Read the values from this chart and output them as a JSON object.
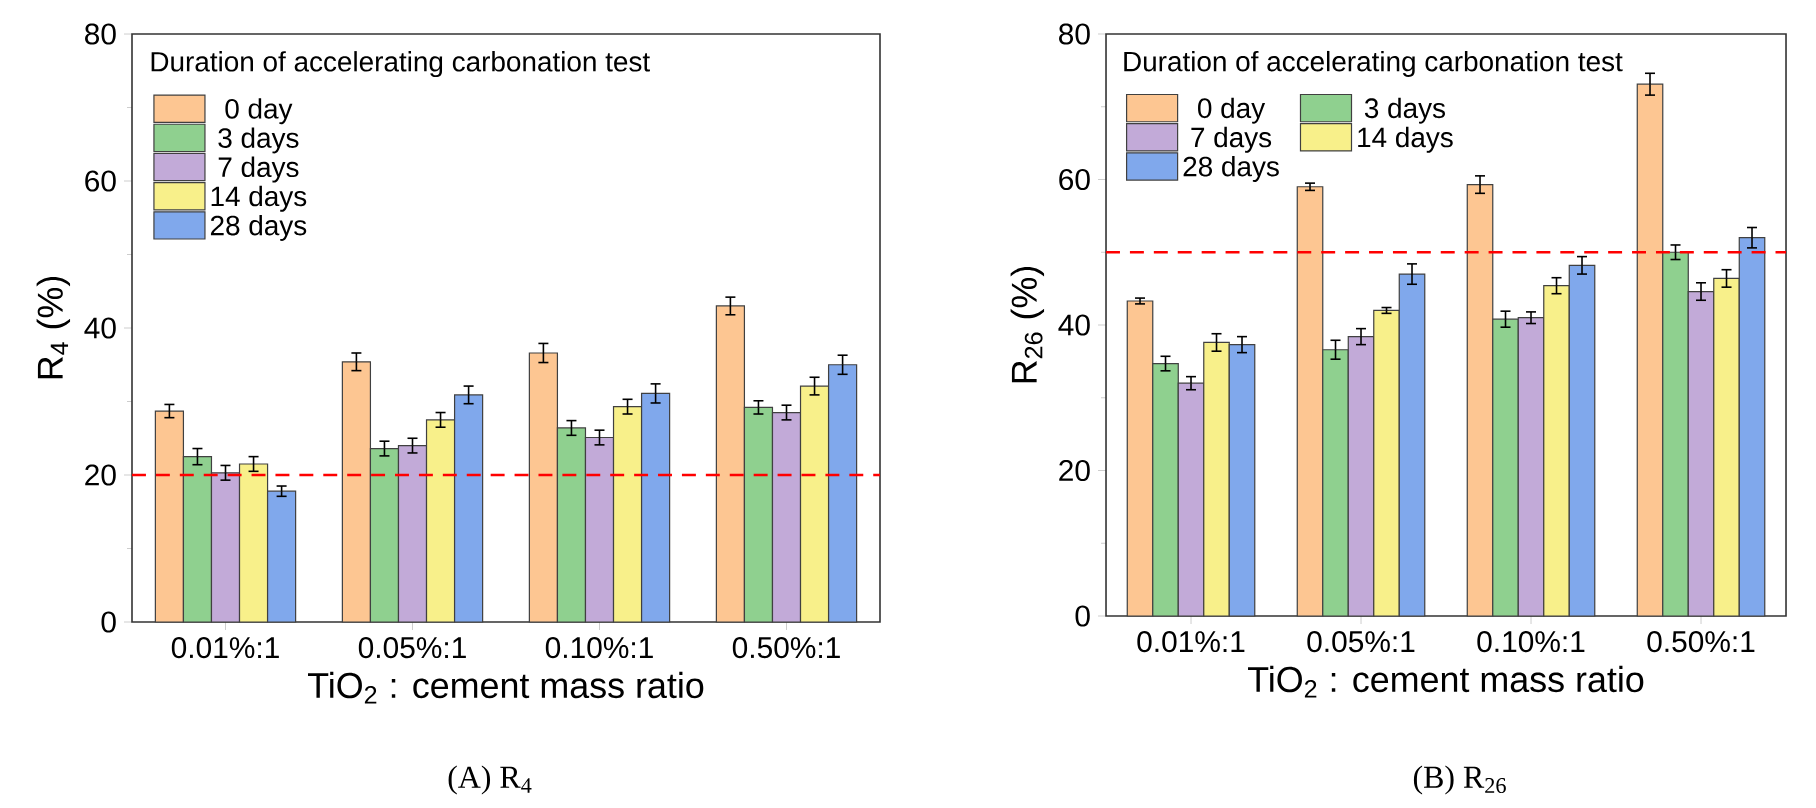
{
  "chart_data": [
    {
      "type": "bar",
      "categories": [
        "0.01%:1",
        "0.05%:1",
        "0.10%:1",
        "0.50%:1"
      ],
      "xlabel": "TiO$_{2}$ : cement mass ratio",
      "ylabel": "R$_{4}$ (%)",
      "ylim": [
        0,
        80
      ],
      "yticks": [
        0,
        20,
        40,
        60,
        80
      ],
      "legend": "top left",
      "legend_title": "Duration of accelerating carbonation test",
      "annotations": [
        "(A) R$_{4}$"
      ],
      "ref_lines": [
        {
          "axis": "y",
          "value": 20,
          "color": "#ff0000",
          "line_style": "dashed"
        }
      ],
      "series": [
        {
          "name": "0 day",
          "color": "#fdc692",
          "values": [
            28.7,
            35.4,
            36.6,
            43.0
          ],
          "errors": [
            0.9,
            1.2,
            1.3,
            1.2
          ]
        },
        {
          "name": "3 days",
          "color": "#8fd08f",
          "values": [
            22.5,
            23.6,
            26.4,
            29.2
          ],
          "errors": [
            1.1,
            1.0,
            1.0,
            0.9
          ]
        },
        {
          "name": "7 days",
          "color": "#c2aad8",
          "values": [
            20.3,
            24.0,
            25.1,
            28.5
          ],
          "errors": [
            1.0,
            1.0,
            1.0,
            1.0
          ]
        },
        {
          "name": "14 days",
          "color": "#f8f08a",
          "values": [
            21.5,
            27.5,
            29.3,
            32.1
          ],
          "errors": [
            1.0,
            1.0,
            1.0,
            1.2
          ]
        },
        {
          "name": "28 days",
          "color": "#80a8ec",
          "values": [
            17.8,
            30.9,
            31.1,
            35.0
          ],
          "errors": [
            0.7,
            1.2,
            1.3,
            1.3
          ]
        }
      ]
    },
    {
      "type": "bar",
      "categories": [
        "0.01%:1",
        "0.05%:1",
        "0.10%:1",
        "0.50%:1"
      ],
      "xlabel": "TiO$_{2}$ : cement mass ratio",
      "ylabel": "R$_{26}$ (%)",
      "ylim": [
        0,
        80
      ],
      "yticks": [
        0,
        20,
        40,
        60,
        80
      ],
      "legend": "top left",
      "legend_title": "Duration of accelerating carbonation test",
      "annotations": [
        "(B) R$_{26}$"
      ],
      "ref_lines": [
        {
          "axis": "y",
          "value": 50,
          "color": "#ff0000",
          "line_style": "dashed"
        }
      ],
      "series": [
        {
          "name": "0 day",
          "color": "#fdc692",
          "values": [
            43.3,
            59.0,
            59.3,
            73.1
          ],
          "errors": [
            0.4,
            0.5,
            1.2,
            1.5
          ]
        },
        {
          "name": "3 days",
          "color": "#8fd08f",
          "values": [
            34.7,
            36.6,
            40.8,
            50.0
          ],
          "errors": [
            1.0,
            1.3,
            1.1,
            1.0
          ]
        },
        {
          "name": "7 days",
          "color": "#c2aad8",
          "values": [
            32.0,
            38.4,
            41.0,
            44.6
          ],
          "errors": [
            0.9,
            1.1,
            0.8,
            1.2
          ]
        },
        {
          "name": "14 days",
          "color": "#f8f08a",
          "values": [
            37.6,
            42.0,
            45.4,
            46.4
          ],
          "errors": [
            1.2,
            0.4,
            1.1,
            1.2
          ]
        },
        {
          "name": "28 days",
          "color": "#80a8ec",
          "values": [
            37.3,
            47.0,
            48.2,
            52.0
          ],
          "errors": [
            1.1,
            1.4,
            1.2,
            1.4
          ]
        }
      ]
    }
  ]
}
